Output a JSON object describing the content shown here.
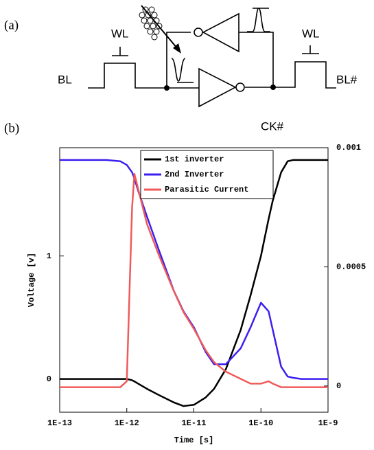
{
  "panel_a": {
    "label": "(a)",
    "wl_left": "WL",
    "wl_right": "WL",
    "bl": "BL",
    "bl_bar": "BL#",
    "ck_bar": "CK#"
  },
  "chart_data": {
    "type": "line",
    "panel_label": "(b)",
    "xlabel": "Time [s]",
    "ylabel": "Voltage [v]",
    "xscale": "log",
    "legend": "upper center",
    "grid": false,
    "x": [
      1e-13,
      5e-13,
      8e-13,
      1e-12,
      1.2e-12,
      1.3e-12,
      1.5e-12,
      2e-12,
      3e-12,
      5e-12,
      7e-12,
      1e-11,
      1.5e-11,
      2e-11,
      3e-11,
      5e-11,
      7e-11,
      1e-10,
      1.3e-10,
      1.5e-10,
      2e-10,
      2.5e-10,
      3e-10,
      4e-10,
      1e-09
    ],
    "xlim": [
      1e-13,
      1e-09
    ],
    "xticks": [
      {
        "value": 1e-13,
        "label": "1E-13"
      },
      {
        "value": 1e-12,
        "label": "1E-12"
      },
      {
        "value": 1e-11,
        "label": "1E-11"
      },
      {
        "value": 1e-10,
        "label": "1E-10"
      },
      {
        "value": 1e-09,
        "label": "1E-9"
      }
    ],
    "ylim": [
      -0.27,
      1.88
    ],
    "yticks": [
      0,
      1
    ],
    "y2lim": [
      -0.00011,
      0.001
    ],
    "y2ticks": [
      0,
      0.0005,
      0.001
    ],
    "series": [
      {
        "name": "1st inverter",
        "color": "#000000",
        "values": [
          0,
          0,
          0,
          0,
          -0.01,
          -0.02,
          -0.04,
          -0.08,
          -0.13,
          -0.19,
          -0.22,
          -0.21,
          -0.15,
          -0.08,
          0.08,
          0.4,
          0.68,
          1.0,
          1.3,
          1.45,
          1.68,
          1.77,
          1.78,
          1.78,
          1.78
        ]
      },
      {
        "name": "2nd Inverter",
        "color": "#3b1ff0",
        "values": [
          1.78,
          1.78,
          1.77,
          1.74,
          1.68,
          1.63,
          1.52,
          1.32,
          1.05,
          0.72,
          0.55,
          0.42,
          0.22,
          0.12,
          0.12,
          0.25,
          0.42,
          0.62,
          0.55,
          0.4,
          0.1,
          0.02,
          0.01,
          0,
          0
        ]
      },
      {
        "name": "Parasitic Current",
        "color": "#f05a5a",
        "axis": "y2",
        "values": [
          -5e-06,
          -5e-06,
          -5e-06,
          2e-05,
          0.00075,
          0.00089,
          0.00082,
          0.00068,
          0.00055,
          0.0004,
          0.00031,
          0.00024,
          0.00015,
          0.0001,
          6e-05,
          3e-05,
          1e-05,
          1e-05,
          2e-05,
          1e-05,
          -5e-06,
          -5e-06,
          -5e-06,
          -5e-06,
          -5e-06
        ]
      }
    ]
  }
}
